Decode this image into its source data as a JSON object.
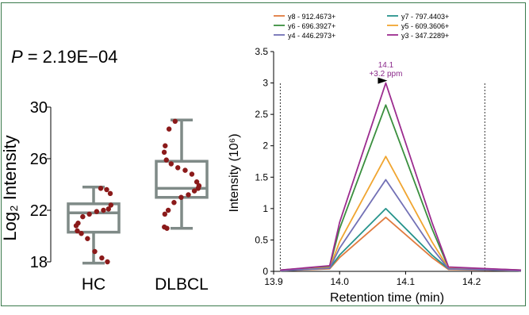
{
  "chart_data": [
    {
      "type": "box",
      "pvalue_prefix": "P",
      "pvalue_text": "= 2.19E−04",
      "ylabel": "Log₂ Intensity",
      "ylim": [
        18,
        30
      ],
      "y_ticks": [
        18,
        22,
        26,
        30
      ],
      "categories": [
        "HC",
        "DLBCL"
      ],
      "box_color": "#7f8a87",
      "point_color": "#8b1a1a",
      "boxes": [
        {
          "name": "HC",
          "whisker_low": 17.9,
          "q1": 20.3,
          "median": 21.8,
          "q3": 22.5,
          "whisker_high": 23.8
        },
        {
          "name": "DLBCL",
          "whisker_low": 20.6,
          "q1": 23.0,
          "median": 23.7,
          "q3": 25.8,
          "whisker_high": 29.0
        }
      ],
      "points": [
        {
          "category": "HC",
          "values": [
            23.7,
            23.6,
            23.3,
            22.4,
            22.1,
            22.0,
            21.9,
            21.7,
            21.5,
            21.0,
            20.8,
            20.4,
            20.2,
            19.8,
            18.8,
            18.3,
            18.0
          ]
        },
        {
          "category": "DLBCL",
          "values": [
            28.9,
            28.3,
            27.0,
            26.5,
            25.9,
            25.6,
            25.3,
            25.1,
            24.8,
            24.2,
            23.9,
            23.7,
            23.5,
            23.2,
            23.0,
            22.6,
            22.0,
            21.7,
            20.7,
            20.6
          ]
        }
      ]
    },
    {
      "type": "line",
      "xlabel": "Retention time (min)",
      "ylabel": "Intensity (10⁶)",
      "xlim": [
        13.9,
        14.275
      ],
      "ylim": [
        0,
        3.5
      ],
      "x_ticks": [
        "13.9",
        "14.0",
        "14.1",
        "14.2"
      ],
      "y_ticks": [
        "0",
        "0.5",
        "1",
        "1.5",
        "2",
        "2.5",
        "3",
        "3.5"
      ],
      "x_tick_values": [
        13.9,
        14.0,
        14.1,
        14.2
      ],
      "y_tick_values": [
        0,
        0.5,
        1,
        1.5,
        2,
        2.5,
        3,
        3.5
      ],
      "boundaries": [
        13.91,
        14.22
      ],
      "peak_annotation": {
        "line1": "14.1",
        "line2": "+3.2 ppm",
        "color": "#8b2a8b"
      },
      "series": [
        {
          "name": "y8 - 912.4673+",
          "color": "#e07b3f",
          "points": [
            [
              13.91,
              0.01
            ],
            [
              13.985,
              0.04
            ],
            [
              14.0,
              0.22
            ],
            [
              14.07,
              0.86
            ],
            [
              14.14,
              0.22
            ],
            [
              14.165,
              0.03
            ],
            [
              14.275,
              0.01
            ]
          ]
        },
        {
          "name": "y7 - 797.4403+",
          "color": "#27948c",
          "points": [
            [
              13.91,
              0.01
            ],
            [
              13.985,
              0.05
            ],
            [
              14.0,
              0.26
            ],
            [
              14.07,
              1.0
            ],
            [
              14.14,
              0.26
            ],
            [
              14.165,
              0.04
            ],
            [
              14.275,
              0.01
            ]
          ]
        },
        {
          "name": "y6 - 696.3927+",
          "color": "#3a8f3e",
          "points": [
            [
              13.91,
              0.02
            ],
            [
              13.985,
              0.08
            ],
            [
              14.0,
              0.68
            ],
            [
              14.07,
              2.65
            ],
            [
              14.14,
              0.68
            ],
            [
              14.165,
              0.06
            ],
            [
              14.275,
              0.02
            ]
          ]
        },
        {
          "name": "y5 - 609.3606+",
          "color": "#f0a530",
          "points": [
            [
              13.91,
              0.01
            ],
            [
              13.985,
              0.06
            ],
            [
              14.0,
              0.47
            ],
            [
              14.07,
              1.83
            ],
            [
              14.14,
              0.47
            ],
            [
              14.165,
              0.05
            ],
            [
              14.275,
              0.01
            ]
          ]
        },
        {
          "name": "y4 - 446.2973+",
          "color": "#7270b5",
          "points": [
            [
              13.91,
              0.01
            ],
            [
              13.985,
              0.05
            ],
            [
              14.0,
              0.37
            ],
            [
              14.07,
              1.46
            ],
            [
              14.14,
              0.37
            ],
            [
              14.165,
              0.04
            ],
            [
              14.275,
              0.01
            ]
          ]
        },
        {
          "name": "y3 - 347.2289+",
          "color": "#9c2c8f",
          "points": [
            [
              13.91,
              0.02
            ],
            [
              13.985,
              0.09
            ],
            [
              14.0,
              0.78
            ],
            [
              14.07,
              3.0
            ],
            [
              14.14,
              0.78
            ],
            [
              14.165,
              0.07
            ],
            [
              14.275,
              0.02
            ]
          ]
        }
      ]
    }
  ]
}
